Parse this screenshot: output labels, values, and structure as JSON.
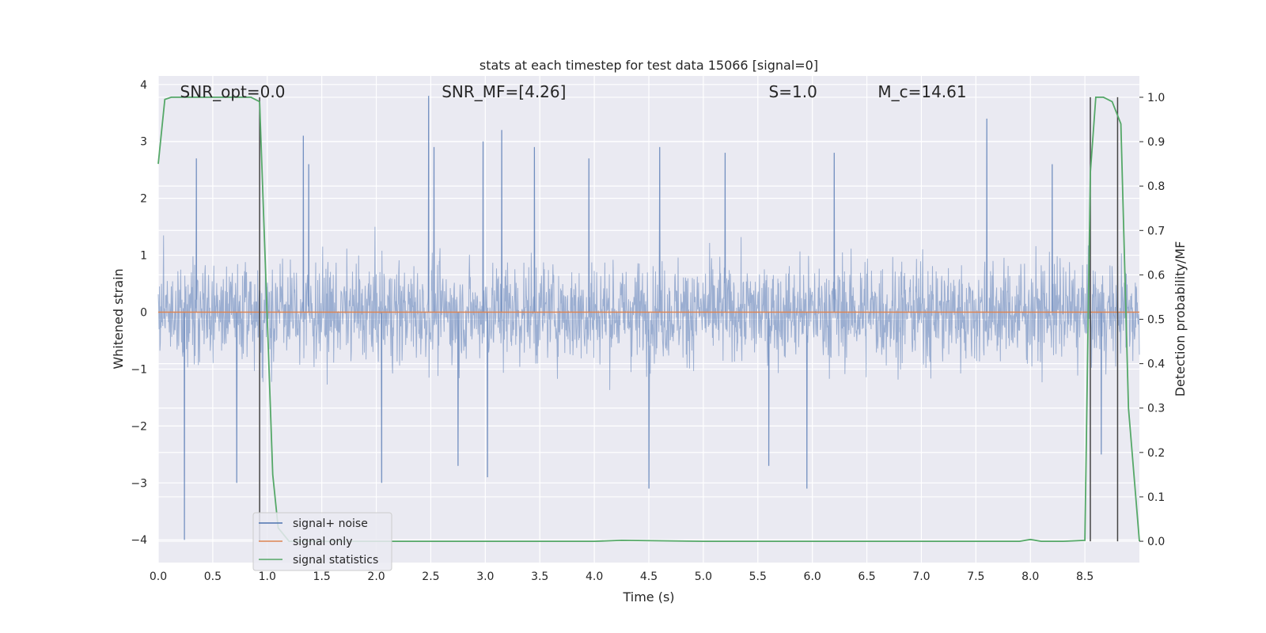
{
  "chart_data": {
    "type": "line",
    "title": "stats at each timestep for test data 15066 [signal=0]",
    "xlabel": "Time (s)",
    "ylabel": "Whitened strain",
    "y2label": "Detection probability/MF",
    "xlim": [
      0.0,
      9.0
    ],
    "ylim": [
      -4.4,
      4.15
    ],
    "y2lim": [
      -0.048,
      1.048
    ],
    "xticks": [
      0.0,
      0.5,
      1.0,
      1.5,
      2.0,
      2.5,
      3.0,
      3.5,
      4.0,
      4.5,
      5.0,
      5.5,
      6.0,
      6.5,
      7.0,
      7.5,
      8.0,
      8.5
    ],
    "xtick_labels": [
      "0.0",
      "0.5",
      "1.0",
      "1.5",
      "2.0",
      "2.5",
      "3.0",
      "3.5",
      "4.0",
      "4.5",
      "5.0",
      "5.5",
      "6.0",
      "6.5",
      "7.0",
      "7.5",
      "8.0",
      "8.5"
    ],
    "yticks": [
      -4,
      -3,
      -2,
      -1,
      0,
      1,
      2,
      3,
      4
    ],
    "ytick_labels": [
      "−4",
      "−3",
      "−2",
      "−1",
      "0",
      "1",
      "2",
      "3",
      "4"
    ],
    "y2ticks": [
      0.0,
      0.1,
      0.2,
      0.3,
      0.4,
      0.5,
      0.6,
      0.7,
      0.8,
      0.9,
      1.0
    ],
    "y2tick_labels": [
      "0.0",
      "0.1",
      "0.2",
      "0.3",
      "0.4",
      "0.5",
      "0.6",
      "0.7",
      "0.8",
      "0.9",
      "1.0"
    ],
    "grid": true,
    "legend_position": "lower-left",
    "annotations": [
      {
        "text": "SNR_opt=0.0",
        "x": 0.2
      },
      {
        "text": "SNR_MF=[4.26]",
        "x": 2.6
      },
      {
        "text": "S=1.0",
        "x": 5.6
      },
      {
        "text": "M_c=14.61",
        "x": 6.6
      }
    ],
    "series": [
      {
        "name": "signal+ noise",
        "color": "#4c72b0",
        "axis": "left",
        "style": "noise",
        "sampling": "dense noise, amplitude mostly within ±1.6, peaks near ±3.8",
        "peaks": [
          {
            "x": 0.24,
            "y": -4.0
          },
          {
            "x": 0.35,
            "y": 2.7
          },
          {
            "x": 0.72,
            "y": -3.0
          },
          {
            "x": 1.33,
            "y": 3.1
          },
          {
            "x": 1.38,
            "y": 2.6
          },
          {
            "x": 2.05,
            "y": -3.0
          },
          {
            "x": 2.48,
            "y": 3.8
          },
          {
            "x": 2.53,
            "y": 2.9
          },
          {
            "x": 2.75,
            "y": -2.7
          },
          {
            "x": 2.98,
            "y": 3.0
          },
          {
            "x": 3.02,
            "y": -2.9
          },
          {
            "x": 3.15,
            "y": 3.2
          },
          {
            "x": 3.45,
            "y": 2.9
          },
          {
            "x": 3.95,
            "y": 2.7
          },
          {
            "x": 4.5,
            "y": -3.1
          },
          {
            "x": 4.6,
            "y": 2.9
          },
          {
            "x": 5.2,
            "y": 2.8
          },
          {
            "x": 5.6,
            "y": -2.7
          },
          {
            "x": 5.95,
            "y": -3.1
          },
          {
            "x": 6.2,
            "y": 2.8
          },
          {
            "x": 7.6,
            "y": 3.4
          },
          {
            "x": 8.2,
            "y": 2.6
          },
          {
            "x": 8.65,
            "y": -2.5
          }
        ]
      },
      {
        "name": "signal only",
        "color": "#dd8452",
        "axis": "left",
        "x": [
          0.0,
          9.0
        ],
        "y": [
          0.0,
          0.0
        ]
      },
      {
        "name": "signal statistics",
        "color": "#55a868",
        "axis": "right",
        "x": [
          0.0,
          0.06,
          0.12,
          0.2,
          0.3,
          0.5,
          0.7,
          0.85,
          0.93,
          1.0,
          1.05,
          1.1,
          1.2,
          2.0,
          3.0,
          4.0,
          4.25,
          5.0,
          6.0,
          7.0,
          7.9,
          8.0,
          8.1,
          8.3,
          8.5,
          8.55,
          8.6,
          8.67,
          8.75,
          8.83,
          8.9,
          9.0
        ],
        "y": [
          0.85,
          0.995,
          1.0,
          1.0,
          1.0,
          1.0,
          1.0,
          1.0,
          0.99,
          0.5,
          0.15,
          0.03,
          0.0,
          0.0,
          0.0,
          0.0,
          0.002,
          0.0,
          0.0,
          0.0,
          0.0,
          0.004,
          0.0,
          0.0,
          0.002,
          0.83,
          1.0,
          1.0,
          0.99,
          0.94,
          0.3,
          0.0
        ]
      }
    ],
    "vertical_markers": [
      {
        "x": 0.93,
        "y2_from": 0.0,
        "y2_to": 1.0,
        "color": "#444444"
      },
      {
        "x": 8.55,
        "y2_from": 0.0,
        "y2_to": 1.0,
        "color": "#444444"
      },
      {
        "x": 8.8,
        "y2_from": 0.0,
        "y2_to": 1.0,
        "color": "#444444"
      }
    ]
  }
}
